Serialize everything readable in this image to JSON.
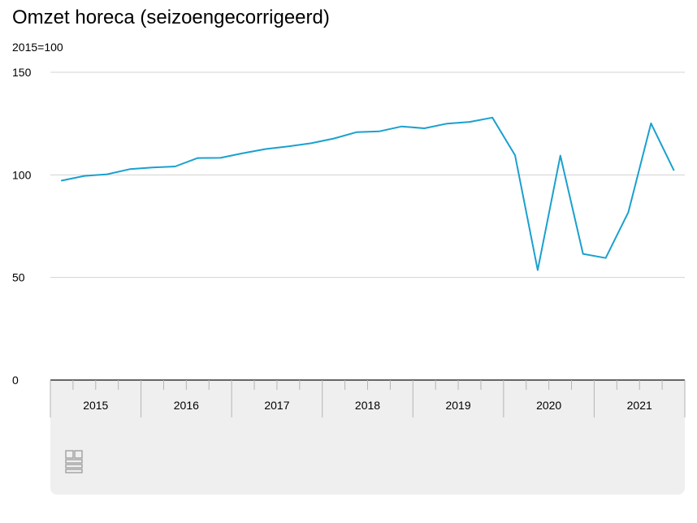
{
  "title": "Omzet horeca (seizoengecorrigeerd)",
  "subtitle": "2015=100",
  "logo": {
    "icon": "cbs-logo-icon",
    "color": "#9a9a9a"
  },
  "colors": {
    "line": "#1aa0cf",
    "grid": "#d3d3d3",
    "axis": "#666666",
    "panel": "#efefef"
  },
  "chart_data": {
    "type": "line",
    "title": "Omzet horeca (seizoengecorrigeerd)",
    "ylabel": "2015=100",
    "xlabel": "",
    "ylim": [
      0,
      150
    ],
    "yticks": [
      0,
      50,
      100,
      150
    ],
    "grid": true,
    "x_groups": [
      "2015",
      "2016",
      "2017",
      "2018",
      "2019",
      "2020",
      "2021"
    ],
    "x": [
      "2015 Q1",
      "2015 Q2",
      "2015 Q3",
      "2015 Q4",
      "2016 Q1",
      "2016 Q2",
      "2016 Q3",
      "2016 Q4",
      "2017 Q1",
      "2017 Q2",
      "2017 Q3",
      "2017 Q4",
      "2018 Q1",
      "2018 Q2",
      "2018 Q3",
      "2018 Q4",
      "2019 Q1",
      "2019 Q2",
      "2019 Q3",
      "2019 Q4",
      "2020 Q1",
      "2020 Q2",
      "2020 Q3",
      "2020 Q4",
      "2021 Q1",
      "2021 Q2",
      "2021 Q3",
      "2021 Q4"
    ],
    "series": [
      {
        "values": [
          97.2,
          99.5,
          100.3,
          102.8,
          103.6,
          104.1,
          108.2,
          108.3,
          110.6,
          112.6,
          113.9,
          115.4,
          117.7,
          120.8,
          121.2,
          123.6,
          122.7,
          125.0,
          125.8,
          127.9,
          109.6,
          53.6,
          109.4,
          61.5,
          59.5,
          81.8,
          125.1,
          102.4
        ]
      }
    ]
  }
}
